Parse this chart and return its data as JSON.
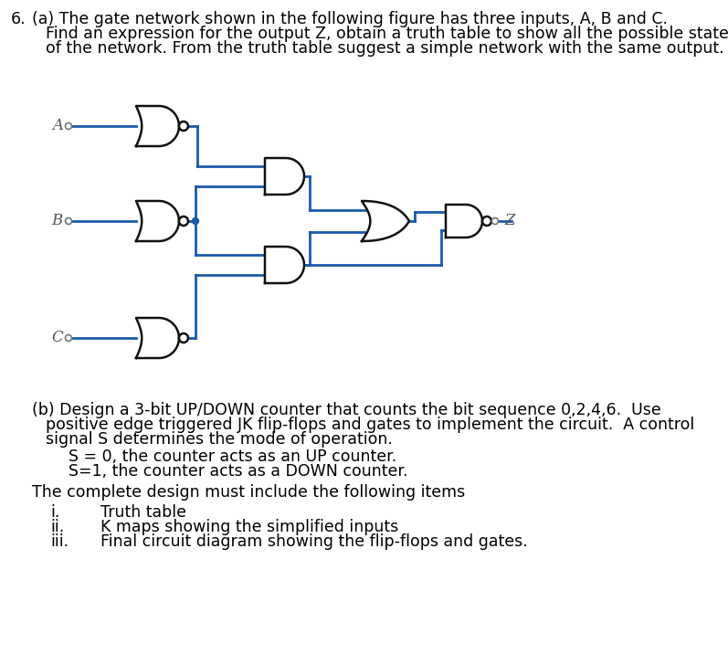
{
  "bg_color": "#ffffff",
  "line_color": "#1a5aaa",
  "gate_edge_color": "#111111",
  "fig_width": 7.97,
  "fig_height": 7.28,
  "part_a_line1": "(a) The gate network shown in the following figure has three inputs, A, B and C.",
  "part_a_line2": "Find an expression for the output Z, obtain a truth table to show all the possible states",
  "part_a_line3": "of the network. From the truth table suggest a simple network with the same output.",
  "part_b_line1": "(b) Design a 3-bit UP/DOWN counter that counts the bit sequence 0,2,4,6.  Use",
  "part_b_line2": "positive edge triggered JK flip-flops and gates to implement the circuit.  A control",
  "part_b_line3": "signal S determines the mode of operation.",
  "part_b_s0": "S = 0, the counter acts as an UP counter.",
  "part_b_s1": "S=1, the counter acts as a DOWN counter.",
  "part_b_complete": "The complete design must include the following items",
  "item_i_num": "i.",
  "item_ii_num": "ii.",
  "item_iii_num": "iii.",
  "item_i_text": "Truth table",
  "item_ii_text": "K maps showing the simplified inputs",
  "item_iii_text": "Final circuit diagram showing the flip-flops and gates.",
  "label_A": "A",
  "label_B": "B",
  "label_C": "C",
  "label_Z": "Z",
  "label_6": "6.",
  "label_a_indent": "   (a) The gate network shown in the following figure has three inputs, A, B and C."
}
